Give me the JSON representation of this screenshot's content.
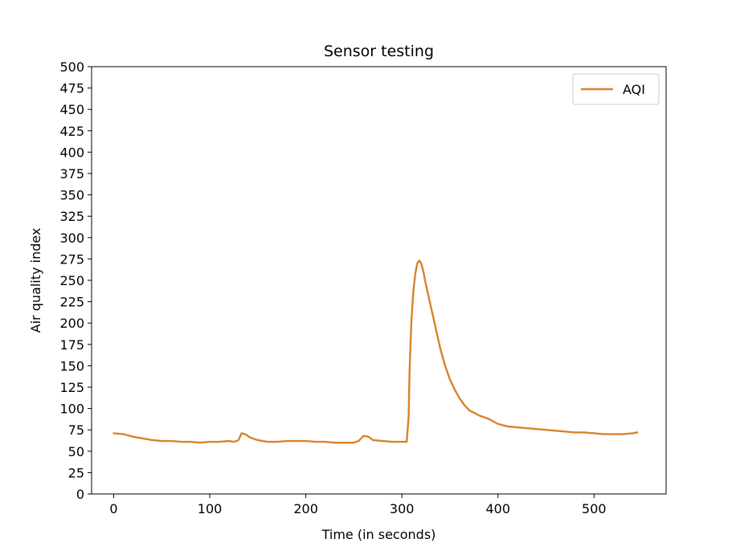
{
  "chart_data": {
    "type": "line",
    "title": "Sensor testing",
    "xlabel": "Time (in seconds)",
    "ylabel": "Air quality index",
    "xlim": [
      -23,
      575
    ],
    "ylim": [
      0,
      500
    ],
    "xticks": [
      0,
      100,
      200,
      300,
      400,
      500
    ],
    "yticks": [
      0,
      25,
      50,
      75,
      100,
      125,
      150,
      175,
      200,
      225,
      250,
      275,
      300,
      325,
      350,
      375,
      400,
      425,
      450,
      475,
      500
    ],
    "grid": false,
    "legend_position": "top-right",
    "series": [
      {
        "name": "AQI",
        "color": "#d9822b",
        "points": [
          [
            0,
            71
          ],
          [
            10,
            70
          ],
          [
            20,
            67
          ],
          [
            30,
            65
          ],
          [
            40,
            63
          ],
          [
            50,
            62
          ],
          [
            60,
            62
          ],
          [
            70,
            61
          ],
          [
            80,
            61
          ],
          [
            90,
            60
          ],
          [
            100,
            61
          ],
          [
            110,
            61
          ],
          [
            120,
            62
          ],
          [
            125,
            61
          ],
          [
            130,
            63
          ],
          [
            133,
            71
          ],
          [
            137,
            70
          ],
          [
            142,
            66
          ],
          [
            150,
            63
          ],
          [
            160,
            61
          ],
          [
            170,
            61
          ],
          [
            180,
            62
          ],
          [
            190,
            62
          ],
          [
            200,
            62
          ],
          [
            210,
            61
          ],
          [
            220,
            61
          ],
          [
            230,
            60
          ],
          [
            240,
            60
          ],
          [
            250,
            60
          ],
          [
            255,
            62
          ],
          [
            260,
            68
          ],
          [
            265,
            67
          ],
          [
            270,
            63
          ],
          [
            280,
            62
          ],
          [
            290,
            61
          ],
          [
            300,
            61
          ],
          [
            305,
            61
          ],
          [
            307,
            90
          ],
          [
            308,
            145
          ],
          [
            310,
            205
          ],
          [
            312,
            238
          ],
          [
            314,
            258
          ],
          [
            316,
            270
          ],
          [
            318,
            273
          ],
          [
            320,
            270
          ],
          [
            322,
            262
          ],
          [
            325,
            245
          ],
          [
            330,
            220
          ],
          [
            335,
            195
          ],
          [
            340,
            170
          ],
          [
            345,
            150
          ],
          [
            350,
            134
          ],
          [
            355,
            122
          ],
          [
            360,
            112
          ],
          [
            365,
            104
          ],
          [
            370,
            98
          ],
          [
            380,
            92
          ],
          [
            390,
            88
          ],
          [
            400,
            82
          ],
          [
            410,
            79
          ],
          [
            420,
            78
          ],
          [
            430,
            77
          ],
          [
            440,
            76
          ],
          [
            450,
            75
          ],
          [
            460,
            74
          ],
          [
            470,
            73
          ],
          [
            480,
            72
          ],
          [
            490,
            72
          ],
          [
            500,
            71
          ],
          [
            510,
            70
          ],
          [
            520,
            70
          ],
          [
            530,
            70
          ],
          [
            540,
            71
          ],
          [
            545,
            72
          ]
        ]
      }
    ]
  }
}
